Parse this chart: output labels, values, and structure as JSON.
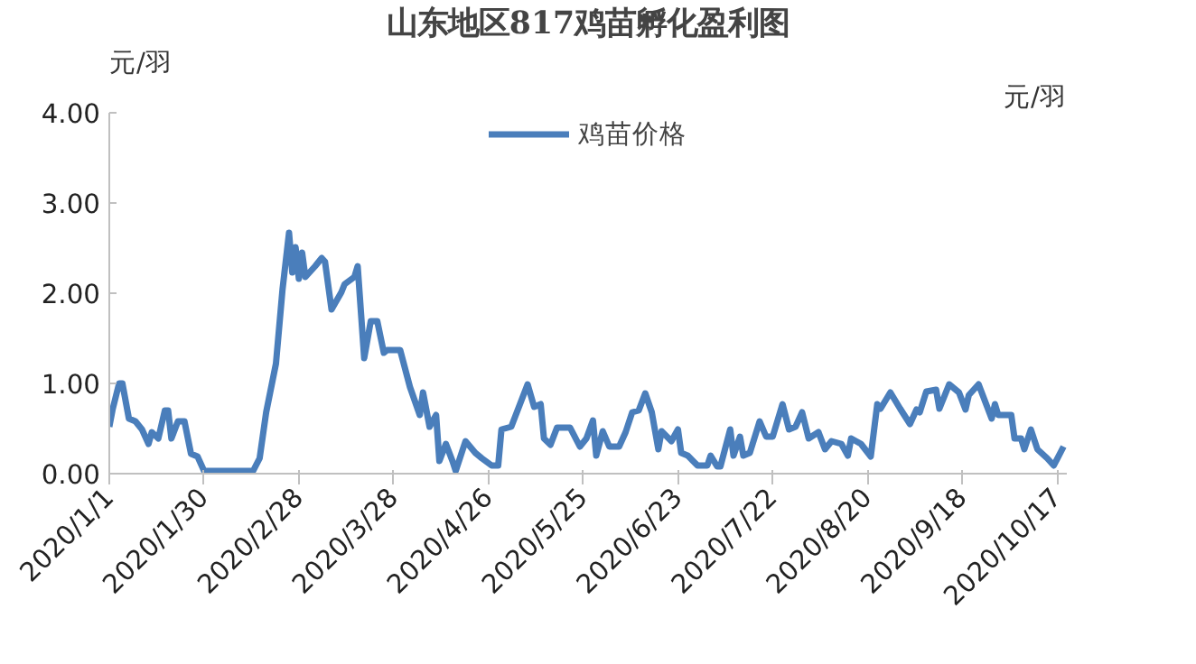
{
  "chart_data": {
    "type": "line",
    "title": "山东地区817鸡苗孵化盈利图",
    "ylabel": "元/羽",
    "y2label": "元/羽",
    "x": [
      "2020-01-01",
      "2020-01-02",
      "2020-01-04",
      "2020-01-05",
      "2020-01-07",
      "2020-01-09",
      "2020-01-11",
      "2020-01-13",
      "2020-01-14",
      "2020-01-16",
      "2020-01-18",
      "2020-01-19",
      "2020-01-20",
      "2020-01-22",
      "2020-01-24",
      "2020-01-26",
      "2020-01-28",
      "2020-01-30",
      "2020-02-14",
      "2020-02-16",
      "2020-02-18",
      "2020-02-21",
      "2020-02-23",
      "2020-02-25",
      "2020-02-26",
      "2020-02-27",
      "2020-02-28",
      "2020-02-29",
      "2020-03-01",
      "2020-03-04",
      "2020-03-06",
      "2020-03-07",
      "2020-03-09",
      "2020-03-12",
      "2020-03-13",
      "2020-03-16",
      "2020-03-17",
      "2020-03-19",
      "2020-03-21",
      "2020-03-23",
      "2020-03-25",
      "2020-03-26",
      "2020-03-30",
      "2020-04-02",
      "2020-04-05",
      "2020-04-06",
      "2020-04-08",
      "2020-04-10",
      "2020-04-11",
      "2020-04-13",
      "2020-04-15",
      "2020-04-16",
      "2020-04-19",
      "2020-04-22",
      "2020-04-24",
      "2020-04-27",
      "2020-04-29",
      "2020-04-30",
      "2020-05-03",
      "2020-05-08",
      "2020-05-10",
      "2020-05-12",
      "2020-05-13",
      "2020-05-15",
      "2020-05-17",
      "2020-05-21",
      "2020-05-24",
      "2020-05-26",
      "2020-05-28",
      "2020-05-29",
      "2020-05-31",
      "2020-06-02",
      "2020-06-05",
      "2020-06-07",
      "2020-06-09",
      "2020-06-11",
      "2020-06-13",
      "2020-06-15",
      "2020-06-17",
      "2020-06-18",
      "2020-06-21",
      "2020-06-23",
      "2020-06-24",
      "2020-06-26",
      "2020-06-29",
      "2020-07-02",
      "2020-07-03",
      "2020-07-05",
      "2020-07-06",
      "2020-07-09",
      "2020-07-10",
      "2020-07-12",
      "2020-07-13",
      "2020-07-15",
      "2020-07-18",
      "2020-07-20",
      "2020-07-22",
      "2020-07-25",
      "2020-07-27",
      "2020-07-29",
      "2020-07-31",
      "2020-08-02",
      "2020-08-05",
      "2020-08-07",
      "2020-08-09",
      "2020-08-12",
      "2020-08-14",
      "2020-08-15",
      "2020-08-18",
      "2020-08-21",
      "2020-08-23",
      "2020-08-24",
      "2020-08-27",
      "2020-08-30",
      "2020-09-02",
      "2020-09-04",
      "2020-09-05",
      "2020-09-07",
      "2020-09-10",
      "2020-09-11",
      "2020-09-14",
      "2020-09-17",
      "2020-09-19",
      "2020-09-20",
      "2020-09-23",
      "2020-09-27",
      "2020-09-28",
      "2020-09-29",
      "2020-10-03",
      "2020-10-04",
      "2020-10-06",
      "2020-10-07",
      "2020-10-09",
      "2020-10-11",
      "2020-10-14",
      "2020-10-16",
      "2020-10-19"
    ],
    "series": [
      {
        "name": "鸡苗价格",
        "color": "#4a7ebb",
        "values": [
          0.52,
          0.71,
          1.0,
          1.0,
          0.61,
          0.58,
          0.49,
          0.33,
          0.46,
          0.39,
          0.7,
          0.7,
          0.39,
          0.58,
          0.58,
          0.22,
          0.19,
          0.03,
          0.03,
          0.17,
          0.68,
          1.22,
          2.04,
          2.67,
          2.23,
          2.51,
          2.16,
          2.45,
          2.18,
          2.3,
          2.39,
          2.35,
          1.82,
          2.01,
          2.1,
          2.18,
          2.3,
          1.28,
          1.69,
          1.69,
          1.34,
          1.37,
          1.37,
          0.96,
          0.65,
          0.9,
          0.52,
          0.65,
          0.14,
          0.33,
          0.14,
          0.03,
          0.36,
          0.23,
          0.17,
          0.09,
          0.09,
          0.49,
          0.52,
          0.99,
          0.74,
          0.77,
          0.39,
          0.32,
          0.51,
          0.51,
          0.3,
          0.39,
          0.59,
          0.2,
          0.47,
          0.3,
          0.3,
          0.46,
          0.68,
          0.7,
          0.89,
          0.68,
          0.27,
          0.47,
          0.36,
          0.49,
          0.23,
          0.2,
          0.09,
          0.09,
          0.2,
          0.08,
          0.08,
          0.49,
          0.2,
          0.41,
          0.2,
          0.23,
          0.58,
          0.41,
          0.41,
          0.77,
          0.49,
          0.52,
          0.68,
          0.39,
          0.46,
          0.27,
          0.36,
          0.33,
          0.2,
          0.39,
          0.33,
          0.19,
          0.77,
          0.72,
          0.9,
          0.72,
          0.55,
          0.71,
          0.68,
          0.91,
          0.93,
          0.72,
          0.99,
          0.9,
          0.71,
          0.87,
          0.99,
          0.61,
          0.77,
          0.65,
          0.65,
          0.39,
          0.39,
          0.27,
          0.49,
          0.27,
          0.17,
          0.09,
          0.3
        ]
      }
    ],
    "xlim": [
      "2020-01-01",
      "2020-10-20"
    ],
    "xticks": [
      {
        "value": "2020-01-01",
        "label": "2020/1/1"
      },
      {
        "value": "2020-01-30",
        "label": "2020/1/30"
      },
      {
        "value": "2020-02-28",
        "label": "2020/2/28"
      },
      {
        "value": "2020-03-28",
        "label": "2020/3/28"
      },
      {
        "value": "2020-04-26",
        "label": "2020/4/26"
      },
      {
        "value": "2020-05-25",
        "label": "2020/5/25"
      },
      {
        "value": "2020-06-23",
        "label": "2020/6/23"
      },
      {
        "value": "2020-07-22",
        "label": "2020/7/22"
      },
      {
        "value": "2020-08-20",
        "label": "2020/8/20"
      },
      {
        "value": "2020-09-18",
        "label": "2020/9/18"
      },
      {
        "value": "2020-10-17",
        "label": "2020/10/17"
      }
    ],
    "ylim": [
      0,
      4
    ],
    "yticks": [
      {
        "value": 0,
        "label": "0.00"
      },
      {
        "value": 1,
        "label": "1.00"
      },
      {
        "value": 2,
        "label": "2.00"
      },
      {
        "value": 3,
        "label": "3.00"
      },
      {
        "value": 4,
        "label": "4.00"
      }
    ],
    "grid": false,
    "legend": "top",
    "marker": "none",
    "line_style": "solid"
  }
}
